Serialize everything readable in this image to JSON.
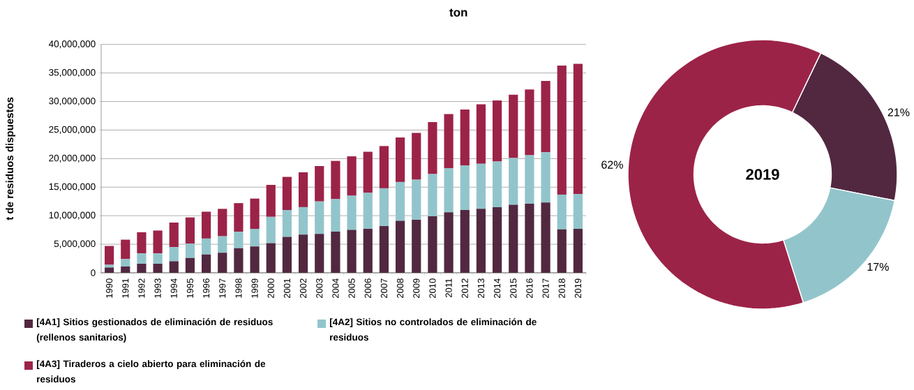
{
  "chart_data": [
    {
      "type": "bar",
      "title": "ton",
      "ylabel": "t de residuos dispuestos",
      "stacked": true,
      "grid": "y",
      "legend": "bottom",
      "categories": [
        "1990",
        "1991",
        "1992",
        "1993",
        "1994",
        "1995",
        "1996",
        "1997",
        "1998",
        "1999",
        "2000",
        "2001",
        "2002",
        "2003",
        "2004",
        "2005",
        "2006",
        "2007",
        "2008",
        "2009",
        "2010",
        "2011",
        "2012",
        "2013",
        "2014",
        "2015",
        "2016",
        "2017",
        "2018",
        "2019"
      ],
      "ylim": [
        0,
        40000000
      ],
      "yticks": [
        {
          "value": 0,
          "label": "0"
        },
        {
          "value": 5000000,
          "label": "5,000,000"
        },
        {
          "value": 10000000,
          "label": "10,000,000"
        },
        {
          "value": 15000000,
          "label": "15,000,000"
        },
        {
          "value": 20000000,
          "label": "20,000,000"
        },
        {
          "value": 25000000,
          "label": "25,000,000"
        },
        {
          "value": 30000000,
          "label": "30,000,000"
        },
        {
          "value": 35000000,
          "label": "35,000,000"
        },
        {
          "value": 40000000,
          "label": "40,000,000"
        }
      ],
      "series": [
        {
          "name": "[4A1] Sitios gestionados de eliminación de residuos (rellenos sanitarios)",
          "color": "#522841",
          "values": [
            900000,
            1100000,
            1600000,
            1600000,
            2000000,
            2600000,
            3200000,
            3500000,
            4300000,
            4600000,
            5200000,
            6300000,
            6700000,
            6800000,
            7200000,
            7500000,
            7700000,
            8200000,
            9100000,
            9300000,
            9900000,
            10600000,
            11000000,
            11200000,
            11500000,
            11900000,
            12100000,
            12300000,
            7600000,
            7700000
          ]
        },
        {
          "name": "[4A2] Sitios no controlados de eliminación de residuos",
          "color": "#92c5cb",
          "values": [
            500000,
            1300000,
            1800000,
            1800000,
            2500000,
            2500000,
            2800000,
            2900000,
            2900000,
            3100000,
            4600000,
            4700000,
            4800000,
            5700000,
            5700000,
            6000000,
            6300000,
            6600000,
            6800000,
            7000000,
            7400000,
            7700000,
            7800000,
            7900000,
            8000000,
            8200000,
            8500000,
            8800000,
            6100000,
            6100000
          ]
        },
        {
          "name": "[4A3] Tiraderos a cielo abierto para eliminación de residuos",
          "color": "#9c2348",
          "values": [
            3300000,
            3400000,
            3700000,
            4000000,
            4300000,
            4600000,
            4700000,
            4800000,
            5000000,
            5300000,
            5600000,
            5800000,
            6100000,
            6200000,
            6700000,
            6900000,
            7200000,
            7400000,
            7800000,
            8200000,
            9100000,
            9500000,
            9800000,
            10400000,
            10700000,
            11100000,
            11500000,
            12500000,
            22600000,
            22800000
          ]
        }
      ]
    },
    {
      "type": "donut",
      "title": "2019",
      "categories": [
        null,
        null,
        null
      ],
      "values": [
        21,
        17,
        62
      ],
      "colors": [
        "#522841",
        "#92c5cb",
        "#9c2348"
      ],
      "value_labels": [
        "21%",
        "17%",
        "62%"
      ]
    }
  ]
}
